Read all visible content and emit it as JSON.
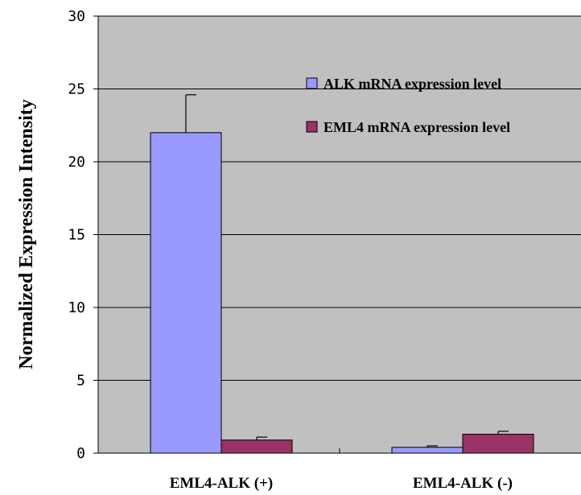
{
  "chart_data": {
    "type": "bar",
    "title": "",
    "xlabel": "",
    "ylabel": "Normalized Expression Intensity",
    "ylim": [
      0,
      30
    ],
    "yticks": [
      0,
      5,
      10,
      15,
      20,
      25,
      30
    ],
    "categories": [
      "EML4-ALK (+)",
      "EML4-ALK (-)"
    ],
    "series": [
      {
        "name": "ALK mRNA expression level",
        "color": "#9999ff",
        "values": [
          22.0,
          0.4
        ],
        "errors": [
          2.6,
          0.1
        ]
      },
      {
        "name": "EML4 mRNA expression level",
        "color": "#993366",
        "values": [
          0.9,
          1.3
        ],
        "errors": [
          0.2,
          0.2
        ]
      }
    ],
    "plot_background": "#c0c0c0",
    "grid": true,
    "legend_position": "top-right"
  }
}
